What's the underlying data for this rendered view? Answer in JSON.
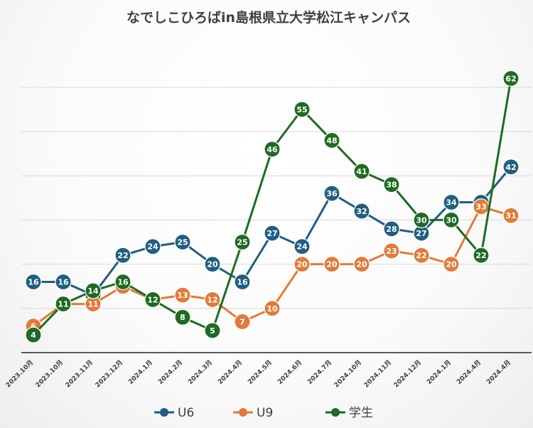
{
  "chart_data": {
    "type": "line",
    "title": "なでしこひろばin島根県立大学松江キャンパス",
    "categories": [
      "2023.10月",
      "2023.10月",
      "2023.11月",
      "2023.12月",
      "2024.1月",
      "2024.2月",
      "2024.3月",
      "2024.4月",
      "2024.5月",
      "2024.6月",
      "2024.7月",
      "2024.10月",
      "2024.11月",
      "2024.12月",
      "2024.1月",
      "2024.4月",
      "2024.4月"
    ],
    "ylim": [
      0,
      70
    ],
    "y_gridlines": [
      10,
      20,
      30,
      40,
      50,
      60
    ],
    "grid": true,
    "legend_position": "bottom",
    "series": [
      {
        "name": "U6",
        "color": "#205E82",
        "values": [
          16,
          16,
          13,
          22,
          24,
          25,
          20,
          16,
          27,
          24,
          36,
          32,
          28,
          27,
          34,
          34,
          42
        ]
      },
      {
        "name": "U9",
        "color": "#E07B39",
        "values": [
          6,
          11,
          11,
          15,
          12,
          13,
          12,
          7,
          10,
          20,
          20,
          20,
          23,
          22,
          20,
          33,
          31
        ]
      },
      {
        "name": "学生",
        "color": "#1E6B22",
        "values": [
          4,
          11,
          14,
          16,
          12,
          8,
          5,
          25,
          46,
          55,
          48,
          41,
          38,
          30,
          30,
          22,
          62
        ]
      }
    ]
  }
}
